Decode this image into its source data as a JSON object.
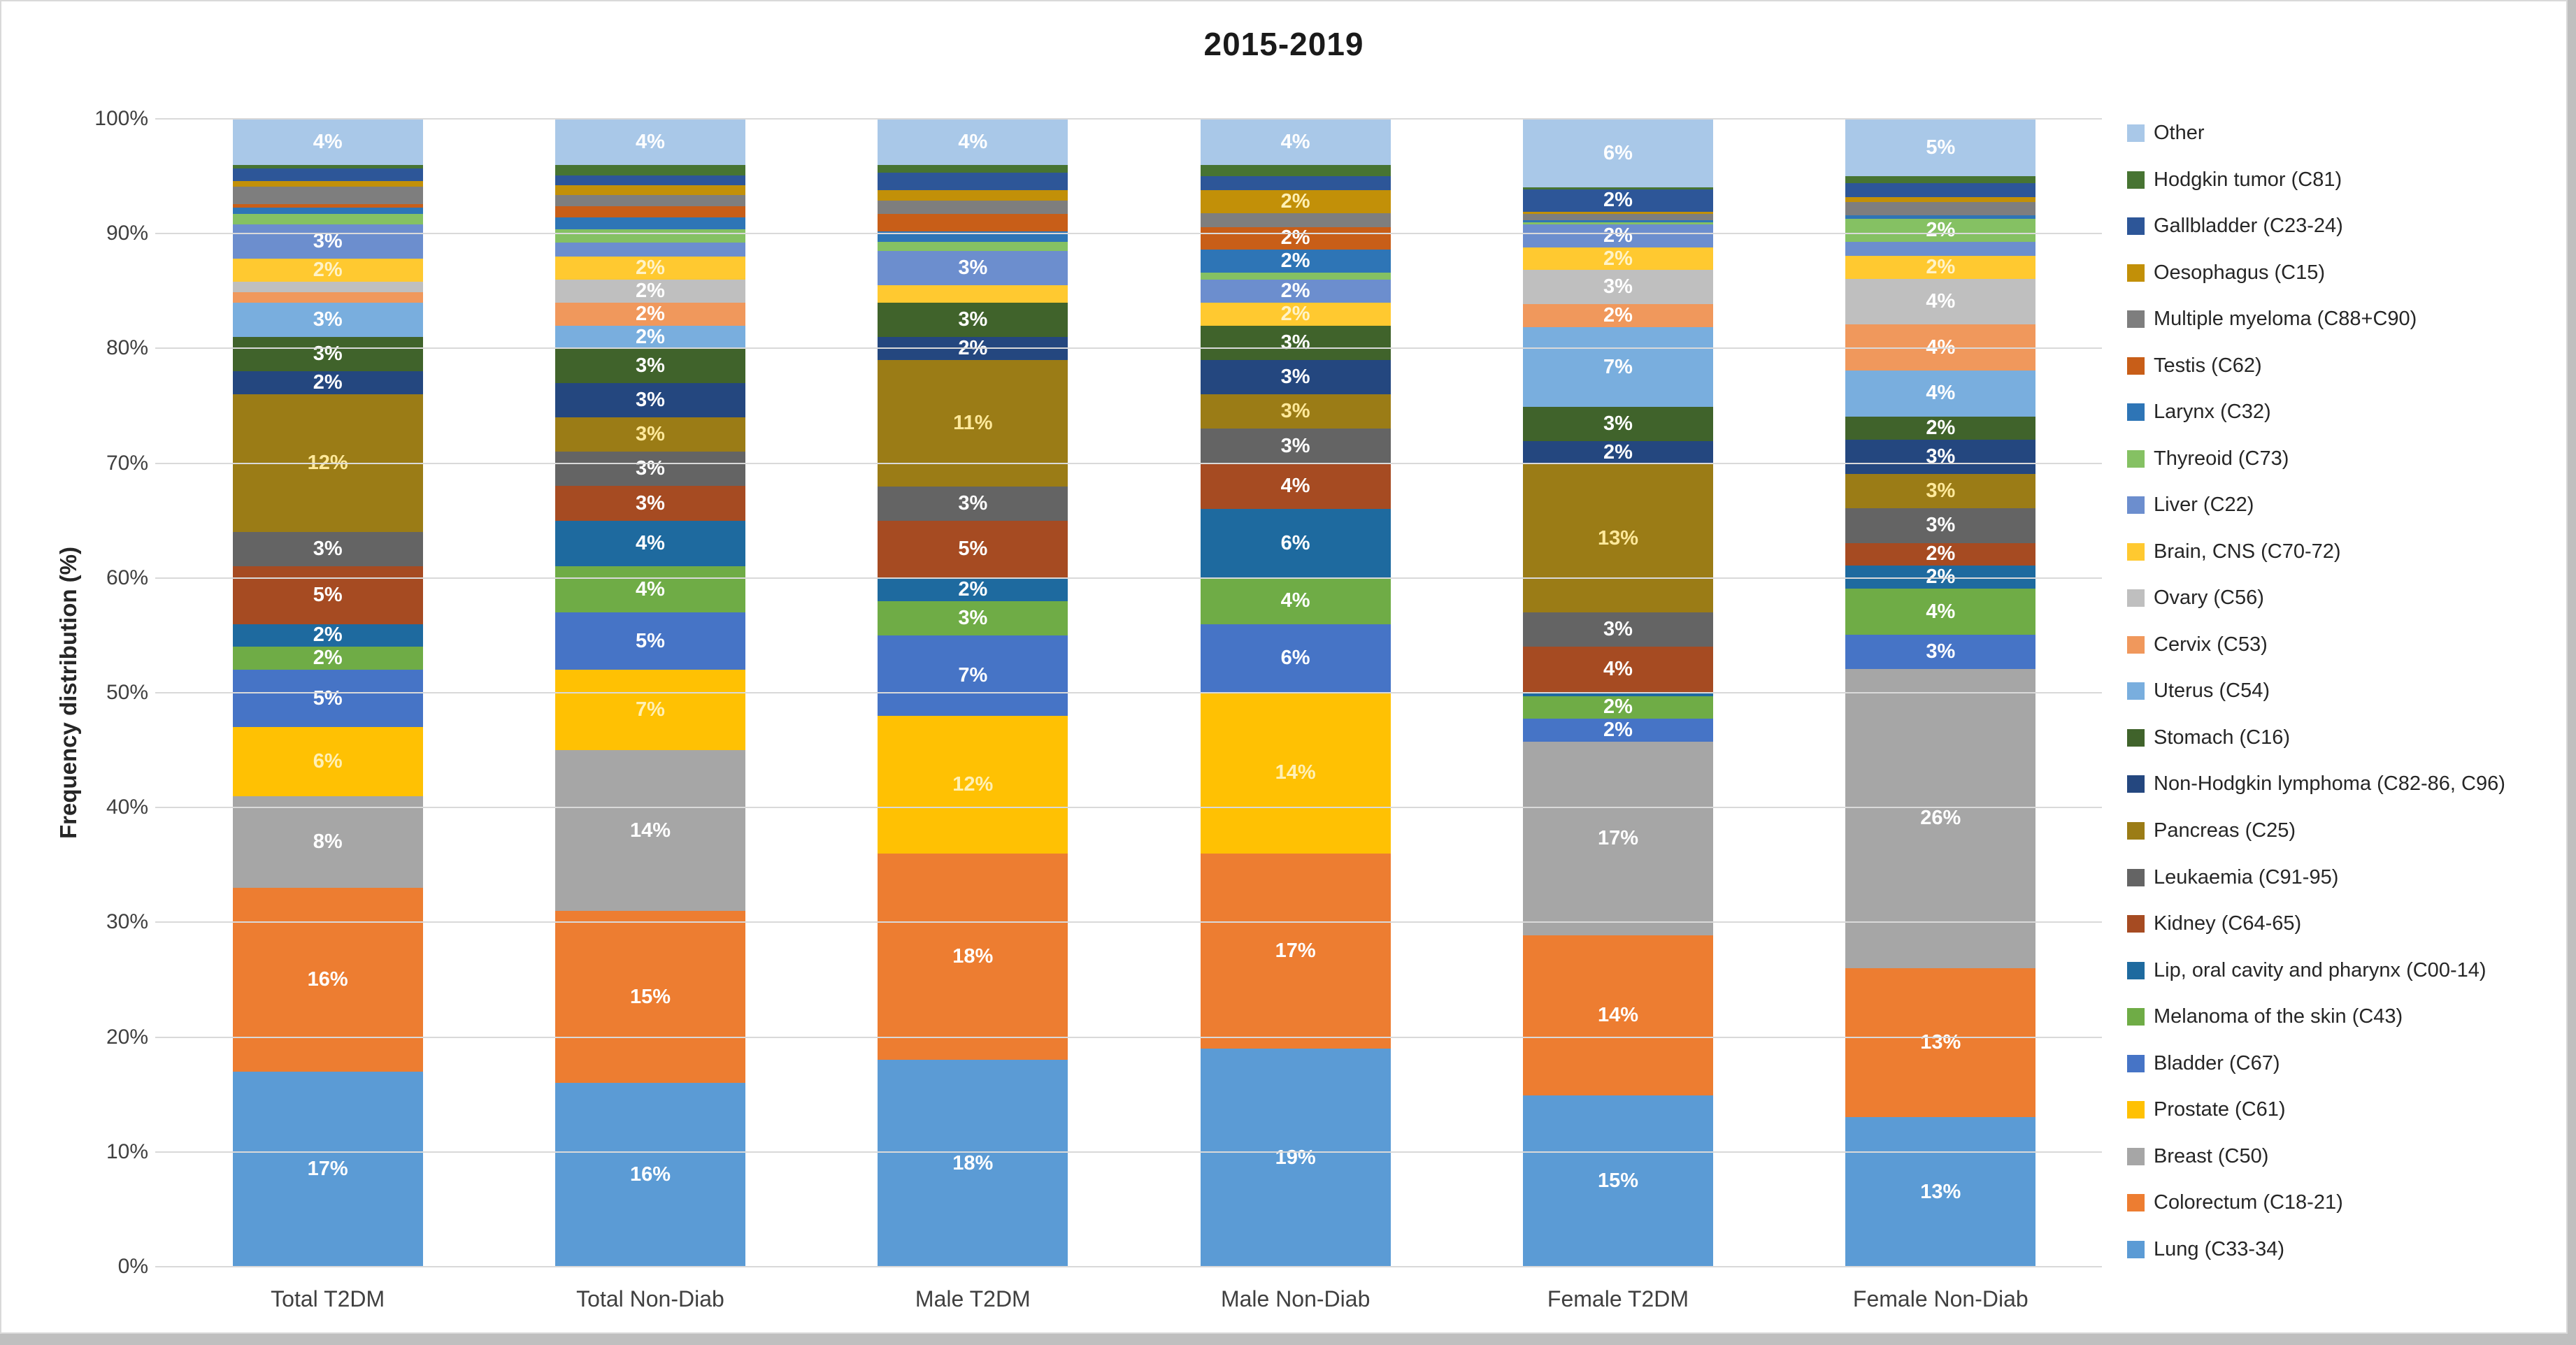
{
  "chart_data": {
    "type": "bar",
    "stacked": true,
    "percent_stacked": true,
    "title": "2015-2019",
    "xlabel": "",
    "ylabel": "Frequency distribution (%)",
    "ylim": [
      0,
      100
    ],
    "yticks": [
      "0%",
      "10%",
      "20%",
      "30%",
      "40%",
      "50%",
      "60%",
      "70%",
      "80%",
      "90%",
      "100%"
    ],
    "grid": true,
    "legend_position": "right",
    "label_min_value": 1.9,
    "categories": [
      "Total T2DM",
      "Total Non-Diab",
      "Male T2DM",
      "Male Non-Diab",
      "Female T2DM",
      "Female Non-Diab"
    ],
    "series": [
      {
        "name": "Lung (C33-34)",
        "color": "#5B9BD5",
        "values": [
          17,
          16,
          18,
          19,
          15,
          13
        ]
      },
      {
        "name": "Colorectum (C18-21)",
        "color": "#ED7D31",
        "values": [
          16,
          15,
          18,
          17,
          14,
          13
        ]
      },
      {
        "name": "Breast (C50)",
        "color": "#A6A6A6",
        "values": [
          8,
          14,
          0,
          0,
          17,
          26
        ]
      },
      {
        "name": "Prostate (C61)",
        "color": "#FFC103",
        "label_color": "#FFF0B5",
        "values": [
          6,
          7,
          12,
          14,
          0,
          0
        ]
      },
      {
        "name": "Bladder (C67)",
        "color": "#4674C6",
        "values": [
          5,
          5,
          7,
          6,
          2,
          3
        ]
      },
      {
        "name": "Melanoma of the skin (C43)",
        "color": "#6FAC46",
        "values": [
          2,
          4,
          3,
          4,
          2,
          4
        ]
      },
      {
        "name": "Lip, oral cavity and pharynx (C00-14)",
        "color": "#1E6A9F",
        "values": [
          2,
          4,
          2,
          6,
          0.3,
          2
        ]
      },
      {
        "name": "Kidney (C64-65)",
        "color": "#A64B22",
        "values": [
          5,
          3,
          5,
          4,
          4,
          2
        ]
      },
      {
        "name": "Leukaemia (C91-95)",
        "color": "#646464",
        "values": [
          3,
          3,
          3,
          3,
          3,
          3
        ]
      },
      {
        "name": "Pancreas (C25)",
        "color": "#9B7C16",
        "label_color": "#FFE99B",
        "values": [
          12,
          3,
          11,
          3,
          13,
          3
        ]
      },
      {
        "name": "Non-Hodgkin lymphoma (C82-86, C96)",
        "color": "#24477F",
        "values": [
          2,
          3,
          2,
          3,
          2,
          3
        ]
      },
      {
        "name": "Stomach (C16)",
        "color": "#40632B",
        "values": [
          3,
          3,
          3,
          3,
          3,
          2
        ]
      },
      {
        "name": "Uterus (C54)",
        "color": "#79AEDE",
        "values": [
          3,
          2,
          0,
          0,
          7,
          4
        ]
      },
      {
        "name": "Cervix (C53)",
        "color": "#F0985C",
        "values": [
          0.9,
          2,
          0,
          0,
          2,
          4
        ]
      },
      {
        "name": "Ovary (C56)",
        "color": "#BFBFBF",
        "values": [
          0.9,
          2,
          0,
          0,
          3,
          4
        ]
      },
      {
        "name": "Brain, CNS (C70-72)",
        "color": "#FFC930",
        "label_color": "#FFF3C7",
        "values": [
          2,
          2,
          1.5,
          2,
          2,
          2
        ]
      },
      {
        "name": "Liver (C22)",
        "color": "#6C8ECE",
        "values": [
          3,
          1.2,
          3,
          2,
          2,
          1.2
        ]
      },
      {
        "name": "Thyreoid (C73)",
        "color": "#85C163",
        "values": [
          0.9,
          1.2,
          0.8,
          0.6,
          0.2,
          2
        ]
      },
      {
        "name": "Larynx (C32)",
        "color": "#2E75B6",
        "values": [
          0.6,
          1,
          0.9,
          2,
          0.2,
          0.3
        ]
      },
      {
        "name": "Testis (C62)",
        "color": "#C85E18",
        "values": [
          0.3,
          1,
          1.5,
          2,
          0,
          0
        ]
      },
      {
        "name": "Multiple myeloma (C88+C90)",
        "color": "#7E7E7E",
        "values": [
          1.5,
          1,
          1.2,
          1.2,
          0.5,
          1.2
        ]
      },
      {
        "name": "Oesophagus (C15)",
        "color": "#C29008",
        "label_color": "#FFF0B5",
        "values": [
          0.5,
          0.8,
          0.9,
          2,
          0.2,
          0.4
        ]
      },
      {
        "name": "Gallbladder (C23-24)",
        "color": "#2D5698",
        "values": [
          1.1,
          0.9,
          1.5,
          1.2,
          2,
          1.2
        ]
      },
      {
        "name": "Hodgkin tumor (C81)",
        "color": "#477432",
        "values": [
          0.3,
          0.9,
          0.7,
          1,
          0.15,
          0.6
        ]
      },
      {
        "name": "Other",
        "color": "#A9C8E8",
        "values": [
          4,
          4,
          4,
          4,
          6,
          5
        ]
      }
    ]
  }
}
